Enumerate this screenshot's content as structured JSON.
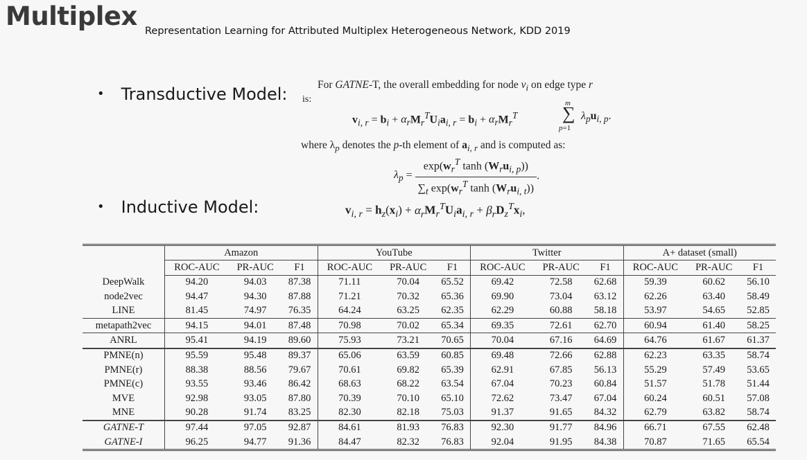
{
  "header": {
    "title": "Multiplex",
    "subtitle": "Representation Learning for Attributed Multiplex Heterogeneous Network, KDD 2019"
  },
  "bullets": {
    "transductive": "Transductive Model:",
    "inductive": "Inductive Model:"
  },
  "formulas": {
    "intro_a": "For ",
    "intro_b": "GATNE",
    "intro_c": "-T, the overall embedding for node ",
    "intro_d": " on edge type ",
    "intro_is": "is:",
    "where_text": "where λ",
    "where_rest": " denotes the ",
    "where_rest2": "-th element of ",
    "where_rest3": " and is computed as:"
  },
  "table": {
    "datasets": [
      "Amazon",
      "YouTube",
      "Twitter",
      "A+ dataset (small)"
    ],
    "metrics": [
      "ROC-AUC",
      "PR-AUC",
      "F1"
    ],
    "rows": [
      {
        "method": "DeepWalk",
        "vals": [
          "94.20",
          "94.03",
          "87.38",
          "71.11",
          "70.04",
          "65.52",
          "69.42",
          "72.58",
          "62.68",
          "59.39",
          "60.62",
          "56.10"
        ]
      },
      {
        "method": "node2vec",
        "vals": [
          "94.47",
          "94.30",
          "87.88",
          "71.21",
          "70.32",
          "65.36",
          "69.90",
          "73.04",
          "63.12",
          "62.26",
          "63.40",
          "58.49"
        ]
      },
      {
        "method": "LINE",
        "vals": [
          "81.45",
          "74.97",
          "76.35",
          "64.24",
          "63.25",
          "62.35",
          "62.29",
          "60.88",
          "58.18",
          "53.97",
          "54.65",
          "52.85"
        ]
      },
      {
        "method": "metapath2vec",
        "vals": [
          "94.15",
          "94.01",
          "87.48",
          "70.98",
          "70.02",
          "65.34",
          "69.35",
          "72.61",
          "62.70",
          "60.94",
          "61.40",
          "58.25"
        ]
      },
      {
        "method": "ANRL",
        "vals": [
          "95.41",
          "94.19",
          "89.60",
          "75.93",
          "73.21",
          "70.65",
          "70.04",
          "67.16",
          "64.69",
          "64.76",
          "61.67",
          "61.37"
        ]
      },
      {
        "method": "PMNE(n)",
        "vals": [
          "95.59",
          "95.48",
          "89.37",
          "65.06",
          "63.59",
          "60.85",
          "69.48",
          "72.66",
          "62.88",
          "62.23",
          "63.35",
          "58.74"
        ]
      },
      {
        "method": "PMNE(r)",
        "vals": [
          "88.38",
          "88.56",
          "79.67",
          "70.61",
          "69.82",
          "65.39",
          "62.91",
          "67.85",
          "56.13",
          "55.29",
          "57.49",
          "53.65"
        ]
      },
      {
        "method": "PMNE(c)",
        "vals": [
          "93.55",
          "93.46",
          "86.42",
          "68.63",
          "68.22",
          "63.54",
          "67.04",
          "70.23",
          "60.84",
          "51.57",
          "51.78",
          "51.44"
        ]
      },
      {
        "method": "MVE",
        "vals": [
          "92.98",
          "93.05",
          "87.80",
          "70.39",
          "70.10",
          "65.10",
          "72.62",
          "73.47",
          "67.04",
          "60.24",
          "60.51",
          "57.08"
        ]
      },
      {
        "method": "MNE",
        "vals": [
          "90.28",
          "91.74",
          "83.25",
          "82.30",
          "82.18",
          "75.03",
          "91.37",
          "91.65",
          "84.32",
          "62.79",
          "63.82",
          "58.74"
        ]
      },
      {
        "method": "GATNE-T",
        "vals": [
          "97.44",
          "97.05",
          "92.87",
          "84.61",
          "81.93",
          "76.83",
          "92.30",
          "91.77",
          "84.96",
          "66.71",
          "67.55",
          "62.48"
        ]
      },
      {
        "method": "GATNE-I",
        "vals": [
          "96.25",
          "94.77",
          "91.36",
          "84.47",
          "82.32",
          "76.83",
          "92.04",
          "91.95",
          "84.38",
          "70.87",
          "71.65",
          "65.54"
        ]
      }
    ]
  }
}
